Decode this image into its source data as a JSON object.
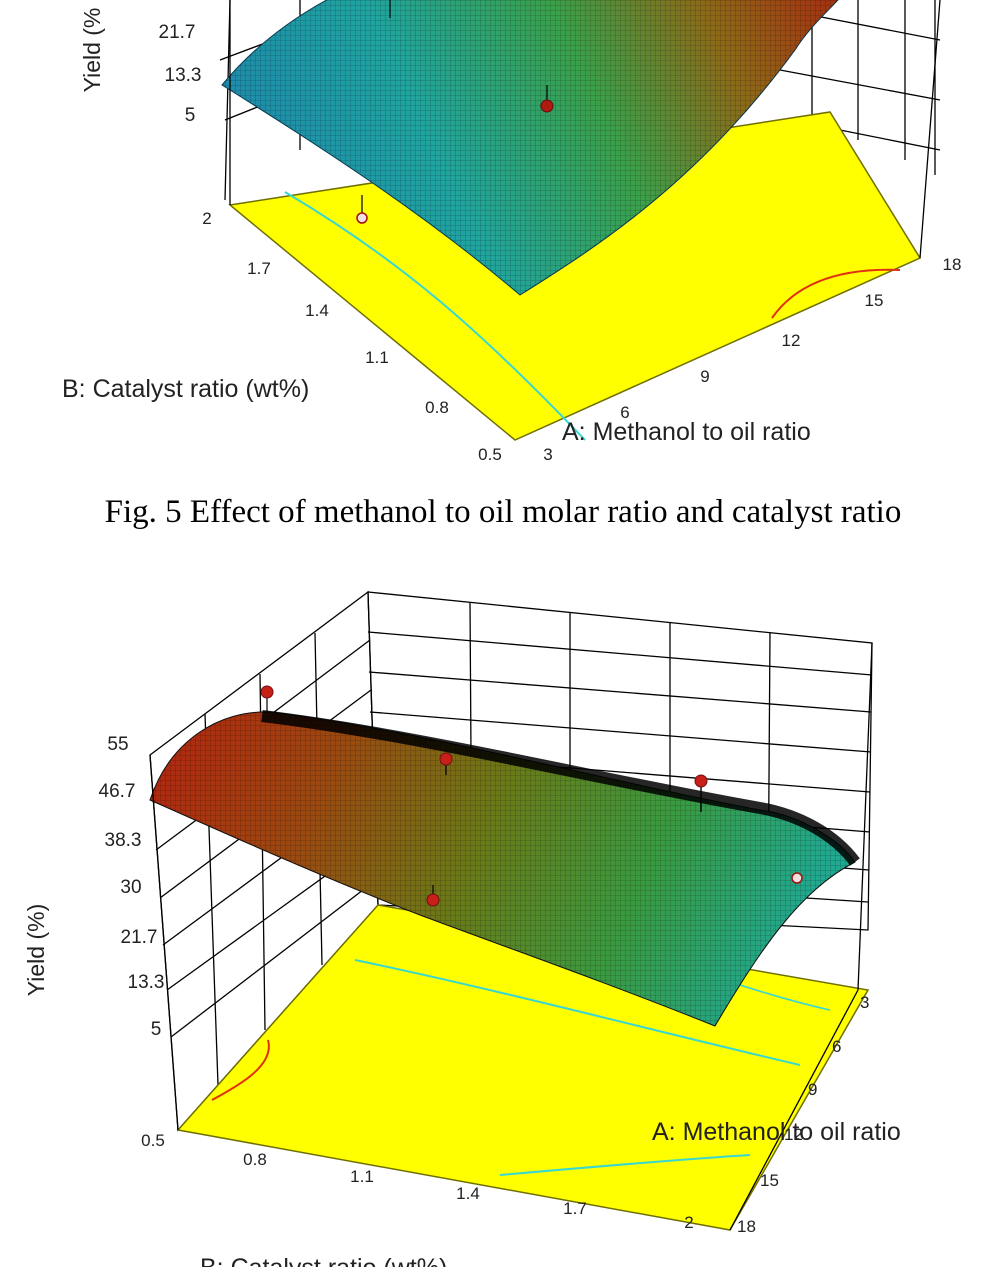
{
  "caption": "Fig. 5 Effect of methanol to oil molar ratio and catalyst ratio",
  "colors": {
    "floor": "#ffff00",
    "floor_edge": "#8a8a00",
    "contour_blue": "#38d8d0",
    "contour_red": "#e03010",
    "design_point": "#d02020",
    "grid": "#000000",
    "surface_low": "#1fa090",
    "surface_high": "#a82a10"
  },
  "chart_data": [
    {
      "type": "surface3d",
      "zlabel": "Yield (%",
      "xlabel": "A: Methanol to oil ratio",
      "ylabel": "B: Catalyst ratio (wt%)",
      "x_ticks": [
        "3",
        "6",
        "9",
        "12",
        "15",
        "18"
      ],
      "y_ticks": [
        "0.5",
        "0.8",
        "1.1",
        "1.4",
        "1.7",
        "2"
      ],
      "z_ticks": [
        "5",
        "13.3",
        "21.7"
      ],
      "xlim": [
        3,
        18
      ],
      "ylim": [
        0.5,
        2
      ],
      "zlim": [
        5,
        55
      ],
      "design_points": [
        {
          "x": 3,
          "y": 2,
          "z": 5
        },
        {
          "x": 10.5,
          "y": 1.25,
          "z": 34
        },
        {
          "x": 3,
          "y": 1.25,
          "z": 52
        }
      ]
    },
    {
      "type": "surface3d",
      "zlabel": "Yield (%)",
      "xlabel": "A: Methanol to oil ratio",
      "ylabel": "B: Catalyst ratio (wt%)",
      "x_ticks": [
        "3",
        "6",
        "9",
        "12",
        "15",
        "18"
      ],
      "y_ticks": [
        "0.5",
        "0.8",
        "1.1",
        "1.4",
        "1.7",
        "2"
      ],
      "z_ticks": [
        "5",
        "13.3",
        "21.7",
        "30",
        "38.3",
        "46.7",
        "55"
      ],
      "xlim": [
        3,
        18
      ],
      "ylim": [
        0.5,
        2
      ],
      "zlim": [
        5,
        55
      ],
      "design_points": [
        {
          "x": 3,
          "y": 0.5,
          "z": 52
        },
        {
          "x": 3,
          "y": 1.25,
          "z": 48
        },
        {
          "x": 3,
          "y": 2,
          "z": 44
        },
        {
          "x": 10.5,
          "y": 0.8,
          "z": 28
        },
        {
          "x": 18,
          "y": 2,
          "z": 27
        }
      ]
    }
  ]
}
